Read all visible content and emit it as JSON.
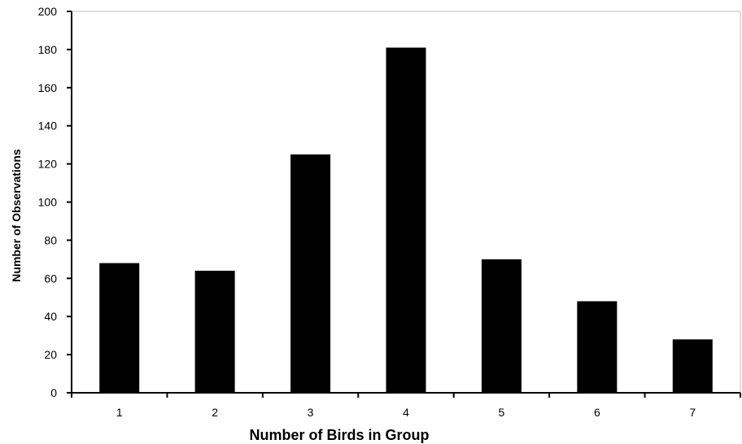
{
  "chart_data": {
    "type": "bar",
    "title": "",
    "xlabel": "Number of Birds in Group",
    "ylabel": "Number of Observations",
    "categories": [
      "1",
      "2",
      "3",
      "4",
      "5",
      "6",
      "7"
    ],
    "values": [
      68,
      64,
      125,
      181,
      70,
      48,
      28
    ],
    "ylim": [
      0,
      200
    ],
    "yticks": [
      "0",
      "20",
      "40",
      "60",
      "80",
      "100",
      "120",
      "140",
      "160",
      "180",
      "200"
    ],
    "grid": false,
    "legend": "none",
    "colors": {
      "bar": "#000000",
      "axis": "#000000",
      "frame": "#bdbdbd",
      "background": "#ffffff"
    }
  }
}
